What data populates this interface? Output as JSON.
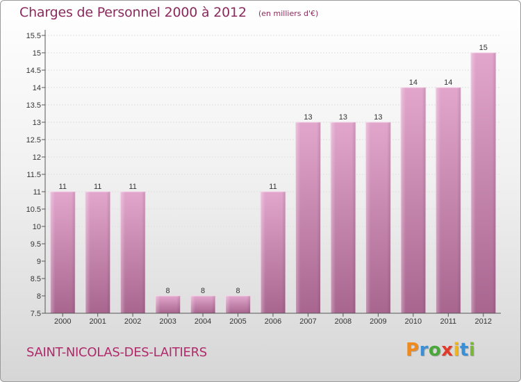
{
  "header": {
    "title": "Charges de Personnel 2000 à 2012",
    "subtitle": "(en milliers d'€)"
  },
  "footer": {
    "commune": "SAINT-NICOLAS-DES-LAITIERS",
    "brand": "Proxiti"
  },
  "colors": {
    "bar_top": "#e2a6cc",
    "bar_bottom": "#a8668f",
    "title": "#8a2a5c",
    "commune": "#b02a6a"
  },
  "chart_data": {
    "type": "bar",
    "title": "Charges de Personnel 2000 à 2012",
    "subtitle": "(en milliers d'€)",
    "categories": [
      "2000",
      "2001",
      "2002",
      "2003",
      "2004",
      "2005",
      "2006",
      "2007",
      "2008",
      "2009",
      "2010",
      "2011",
      "2012"
    ],
    "values": [
      11,
      11,
      11,
      8,
      8,
      8,
      11,
      13,
      13,
      13,
      14,
      14,
      15
    ],
    "data_labels": [
      "11",
      "11",
      "11",
      "8",
      "8",
      "8",
      "11",
      "13",
      "13",
      "13",
      "14",
      "14",
      "15"
    ],
    "yticks": [
      "7.5",
      "8",
      "8.5",
      "9",
      "9.5",
      "10",
      "10.5",
      "11",
      "11.5",
      "12",
      "12.5",
      "13",
      "13.5",
      "14",
      "14.5",
      "15",
      "15.5"
    ],
    "ylim": [
      7.5,
      15.5
    ],
    "grid": true,
    "legend": "none"
  }
}
